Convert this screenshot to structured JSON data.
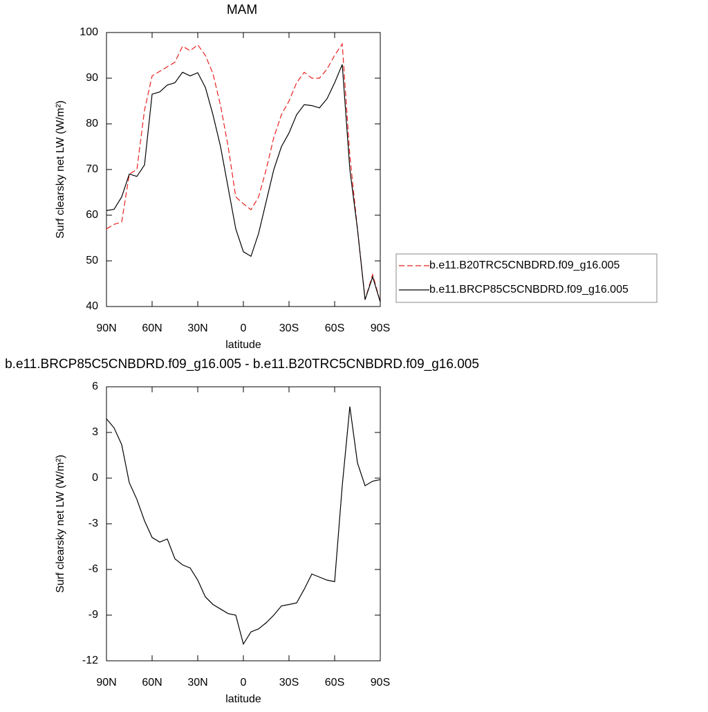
{
  "chart_data": [
    {
      "type": "line",
      "title": "MAM",
      "xlabel": "latitude",
      "ylabel": "Surf clearsky net LW (W/m²)",
      "x": [
        90,
        85,
        80,
        75,
        70,
        65,
        60,
        55,
        50,
        45,
        40,
        35,
        30,
        25,
        20,
        15,
        10,
        5,
        0,
        -5,
        -10,
        -15,
        -20,
        -25,
        -30,
        -35,
        -40,
        -45,
        -50,
        -55,
        -60,
        -65,
        -70,
        -75,
        -80,
        -85,
        -90
      ],
      "xlim": [
        90,
        -90
      ],
      "xticks": [
        {
          "value": 90,
          "label": "90N"
        },
        {
          "value": 60,
          "label": "60N"
        },
        {
          "value": 30,
          "label": "30N"
        },
        0,
        {
          "value": -30,
          "label": "30S"
        },
        {
          "value": -60,
          "label": "60S"
        },
        {
          "value": -90,
          "label": "90S"
        }
      ],
      "ylim": [
        40,
        100
      ],
      "yticks": [
        40,
        50,
        60,
        70,
        80,
        90,
        100
      ],
      "legend": "outside-right",
      "series": [
        {
          "name": "b.e11.B20TRC5CNBDRD.f09_g16.005",
          "color": "#e8201c",
          "style": "dashed",
          "values": [
            57,
            58,
            58.5,
            69,
            70,
            83,
            90.5,
            91.5,
            92.5,
            93.5,
            97,
            96,
            97.3,
            95,
            91,
            84,
            75,
            64,
            62.5,
            61.2,
            64,
            70,
            77,
            82,
            85,
            89,
            91.3,
            90,
            90,
            92,
            95,
            97.5,
            73,
            57,
            41.5,
            47,
            41
          ]
        },
        {
          "name": "b.e11.BRCP85C5CNBDRD.f09_g16.005",
          "color": "#000000",
          "style": "solid",
          "values": [
            61,
            61.3,
            64,
            69,
            68.5,
            71,
            86.5,
            87,
            88.5,
            89,
            91.3,
            90.5,
            91.2,
            88,
            82,
            75,
            66,
            57,
            52,
            51,
            56,
            63,
            70,
            75,
            78,
            82,
            84.2,
            84,
            83.5,
            85.5,
            89,
            93,
            70,
            57,
            41.5,
            46.5,
            41
          ]
        }
      ]
    },
    {
      "type": "line",
      "title": "b.e11.BRCP85C5CNBDRD.f09_g16.005 - b.e11.B20TRC5CNBDRD.f09_g16.005",
      "xlabel": "latitude",
      "ylabel": "Surf clearsky net LW (W/m²)",
      "x": [
        90,
        85,
        80,
        75,
        70,
        65,
        60,
        55,
        50,
        45,
        40,
        35,
        30,
        25,
        20,
        15,
        10,
        5,
        0,
        -5,
        -10,
        -15,
        -20,
        -25,
        -30,
        -35,
        -40,
        -45,
        -50,
        -55,
        -60,
        -65,
        -70,
        -75,
        -80,
        -85,
        -90
      ],
      "xlim": [
        90,
        -90
      ],
      "xticks": [
        {
          "value": 90,
          "label": "90N"
        },
        {
          "value": 60,
          "label": "60N"
        },
        {
          "value": 30,
          "label": "30N"
        },
        0,
        {
          "value": -30,
          "label": "30S"
        },
        {
          "value": -60,
          "label": "60S"
        },
        {
          "value": -90,
          "label": "90S"
        }
      ],
      "ylim": [
        -12,
        6
      ],
      "yticks": [
        -12,
        -9,
        -6,
        -3,
        0,
        3,
        6
      ],
      "series": [
        {
          "color": "#000000",
          "style": "solid",
          "values": [
            3.9,
            3.3,
            2.2,
            -0.3,
            -1.4,
            -2.8,
            -3.9,
            -4.2,
            -4.0,
            -5.3,
            -5.7,
            -5.9,
            -6.7,
            -7.8,
            -8.3,
            -8.6,
            -8.9,
            -9.0,
            -10.9,
            -10.1,
            -9.9,
            -9.5,
            -9.0,
            -8.4,
            -8.3,
            -8.2,
            -7.3,
            -6.3,
            -6.5,
            -6.7,
            -6.8,
            -0.5,
            4.7,
            1.0,
            -0.5,
            -0.2,
            -0.1
          ]
        }
      ]
    }
  ]
}
